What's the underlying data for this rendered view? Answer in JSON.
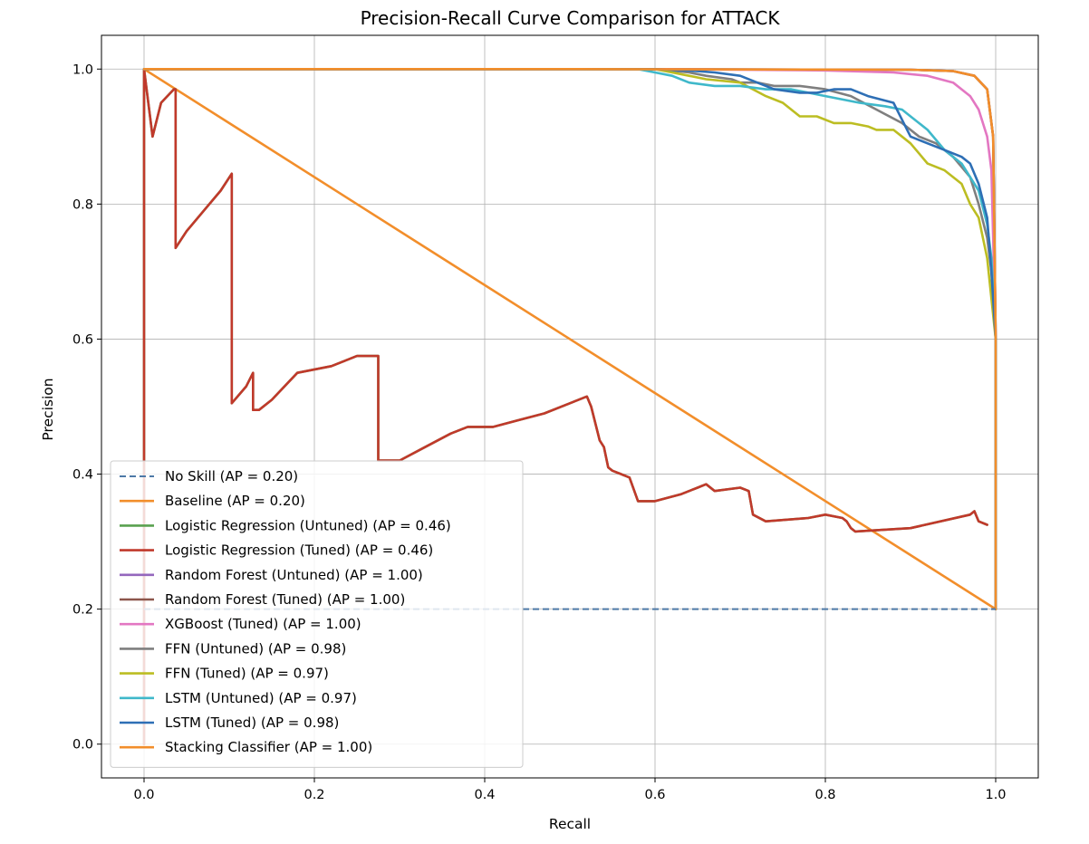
{
  "chart_data": {
    "type": "line",
    "title": "Precision-Recall Curve Comparison for ATTACK",
    "xlabel": "Recall",
    "ylabel": "Precision",
    "xlim": [
      -0.05,
      1.05
    ],
    "ylim": [
      -0.05,
      1.05
    ],
    "xticks": [
      "0.0",
      "0.2",
      "0.4",
      "0.6",
      "0.8",
      "1.0"
    ],
    "yticks": [
      "0.0",
      "0.2",
      "0.4",
      "0.6",
      "0.8",
      "1.0"
    ],
    "grid": true,
    "legend_position": "lower-left",
    "series": [
      {
        "name": "No Skill (AP = 0.20)",
        "color": "#4e79a7",
        "dashed": true,
        "x": [
          0.0,
          1.0
        ],
        "y": [
          0.2,
          0.2
        ]
      },
      {
        "name": "Baseline (AP = 0.20)",
        "color": "#f28e2b",
        "dashed": false,
        "x": [
          0.0,
          1.0
        ],
        "y": [
          1.0,
          0.2
        ]
      },
      {
        "name": "Logistic Regression (Untuned) (AP = 0.46)",
        "color": "#59a14f",
        "dashed": false,
        "x": [
          0.0,
          0.0,
          0.01,
          0.02,
          0.035,
          0.037,
          0.037,
          0.05,
          0.07,
          0.09,
          0.103,
          0.103,
          0.12,
          0.128,
          0.128,
          0.135,
          0.15,
          0.18,
          0.22,
          0.25,
          0.26,
          0.275,
          0.275,
          0.285,
          0.3,
          0.33,
          0.36,
          0.38,
          0.41,
          0.44,
          0.47,
          0.5,
          0.52,
          0.525,
          0.535,
          0.54,
          0.545,
          0.55,
          0.56,
          0.57,
          0.58,
          0.6,
          0.63,
          0.65,
          0.66,
          0.67,
          0.7,
          0.71,
          0.715,
          0.73,
          0.78,
          0.8,
          0.82,
          0.825,
          0.83,
          0.835,
          0.9,
          0.97,
          0.975,
          0.98,
          0.99
        ],
        "y": [
          0.0,
          1.0,
          0.9,
          0.95,
          0.97,
          0.97,
          0.735,
          0.76,
          0.79,
          0.82,
          0.845,
          0.505,
          0.53,
          0.55,
          0.495,
          0.495,
          0.51,
          0.55,
          0.56,
          0.575,
          0.575,
          0.575,
          0.42,
          0.42,
          0.42,
          0.44,
          0.46,
          0.47,
          0.47,
          0.48,
          0.49,
          0.505,
          0.515,
          0.5,
          0.45,
          0.44,
          0.41,
          0.405,
          0.4,
          0.395,
          0.36,
          0.36,
          0.37,
          0.38,
          0.385,
          0.375,
          0.38,
          0.375,
          0.34,
          0.33,
          0.335,
          0.34,
          0.335,
          0.33,
          0.32,
          0.315,
          0.32,
          0.34,
          0.345,
          0.33,
          0.325
        ]
      },
      {
        "name": "Logistic Regression (Tuned) (AP = 0.46)",
        "color": "#c0392b",
        "dashed": false,
        "x": [
          0.0,
          0.0,
          0.01,
          0.02,
          0.035,
          0.037,
          0.037,
          0.05,
          0.07,
          0.09,
          0.103,
          0.103,
          0.12,
          0.128,
          0.128,
          0.135,
          0.15,
          0.18,
          0.22,
          0.25,
          0.26,
          0.275,
          0.275,
          0.285,
          0.3,
          0.33,
          0.36,
          0.38,
          0.41,
          0.44,
          0.47,
          0.5,
          0.52,
          0.525,
          0.535,
          0.54,
          0.545,
          0.55,
          0.56,
          0.57,
          0.58,
          0.6,
          0.63,
          0.65,
          0.66,
          0.67,
          0.7,
          0.71,
          0.715,
          0.73,
          0.78,
          0.8,
          0.82,
          0.825,
          0.83,
          0.835,
          0.9,
          0.97,
          0.975,
          0.98,
          0.99
        ],
        "y": [
          0.0,
          1.0,
          0.9,
          0.95,
          0.97,
          0.97,
          0.735,
          0.76,
          0.79,
          0.82,
          0.845,
          0.505,
          0.53,
          0.55,
          0.495,
          0.495,
          0.51,
          0.55,
          0.56,
          0.575,
          0.575,
          0.575,
          0.42,
          0.42,
          0.42,
          0.44,
          0.46,
          0.47,
          0.47,
          0.48,
          0.49,
          0.505,
          0.515,
          0.5,
          0.45,
          0.44,
          0.41,
          0.405,
          0.4,
          0.395,
          0.36,
          0.36,
          0.37,
          0.38,
          0.385,
          0.375,
          0.38,
          0.375,
          0.34,
          0.33,
          0.335,
          0.34,
          0.335,
          0.33,
          0.32,
          0.315,
          0.32,
          0.34,
          0.345,
          0.33,
          0.325
        ]
      },
      {
        "name": "Random Forest (Untuned) (AP = 1.00)",
        "color": "#9467bd",
        "dashed": false,
        "x": [
          0.0,
          0.5,
          0.9,
          0.95,
          0.975,
          0.99,
          0.997,
          1.0,
          1.0
        ],
        "y": [
          1.0,
          1.0,
          0.999,
          0.997,
          0.99,
          0.97,
          0.9,
          0.6,
          0.2
        ]
      },
      {
        "name": "Random Forest (Tuned) (AP = 1.00)",
        "color": "#8c564b",
        "dashed": false,
        "x": [
          0.0,
          0.5,
          0.9,
          0.95,
          0.975,
          0.99,
          0.997,
          1.0,
          1.0
        ],
        "y": [
          1.0,
          1.0,
          0.999,
          0.997,
          0.99,
          0.97,
          0.9,
          0.6,
          0.2
        ]
      },
      {
        "name": "XGBoost (Tuned) (AP = 1.00)",
        "color": "#e377c2",
        "dashed": false,
        "x": [
          0.0,
          0.6,
          0.8,
          0.88,
          0.92,
          0.95,
          0.97,
          0.98,
          0.99,
          0.995,
          1.0,
          1.0
        ],
        "y": [
          1.0,
          1.0,
          0.998,
          0.995,
          0.99,
          0.98,
          0.96,
          0.94,
          0.9,
          0.85,
          0.6,
          0.2
        ]
      },
      {
        "name": "FFN (Untuned) (AP = 0.98)",
        "color": "#7f7f7f",
        "dashed": false,
        "x": [
          0.0,
          0.6,
          0.64,
          0.66,
          0.69,
          0.7,
          0.72,
          0.74,
          0.77,
          0.8,
          0.83,
          0.86,
          0.89,
          0.91,
          0.93,
          0.95,
          0.97,
          0.98,
          0.99,
          0.995,
          1.0,
          1.0
        ],
        "y": [
          1.0,
          1.0,
          0.995,
          0.99,
          0.985,
          0.98,
          0.98,
          0.975,
          0.975,
          0.97,
          0.96,
          0.94,
          0.92,
          0.9,
          0.89,
          0.87,
          0.84,
          0.8,
          0.75,
          0.7,
          0.6,
          0.2
        ]
      },
      {
        "name": "FFN (Tuned) (AP = 0.97)",
        "color": "#bcbd22",
        "dashed": false,
        "x": [
          0.0,
          0.6,
          0.62,
          0.64,
          0.66,
          0.7,
          0.73,
          0.75,
          0.76,
          0.77,
          0.79,
          0.81,
          0.83,
          0.85,
          0.86,
          0.88,
          0.89,
          0.9,
          0.92,
          0.94,
          0.96,
          0.97,
          0.98,
          0.99,
          1.0,
          1.0
        ],
        "y": [
          1.0,
          1.0,
          0.995,
          0.99,
          0.985,
          0.98,
          0.96,
          0.95,
          0.94,
          0.93,
          0.93,
          0.92,
          0.92,
          0.915,
          0.91,
          0.91,
          0.9,
          0.89,
          0.86,
          0.85,
          0.83,
          0.8,
          0.78,
          0.72,
          0.6,
          0.2
        ]
      },
      {
        "name": "LSTM (Untuned) (AP = 0.97)",
        "color": "#3fb8ca",
        "dashed": false,
        "x": [
          0.0,
          0.58,
          0.6,
          0.62,
          0.64,
          0.67,
          0.7,
          0.73,
          0.76,
          0.8,
          0.84,
          0.87,
          0.89,
          0.9,
          0.92,
          0.94,
          0.96,
          0.98,
          0.99,
          0.995,
          1.0,
          1.0
        ],
        "y": [
          1.0,
          1.0,
          0.995,
          0.99,
          0.98,
          0.975,
          0.975,
          0.97,
          0.97,
          0.96,
          0.95,
          0.945,
          0.94,
          0.93,
          0.91,
          0.88,
          0.86,
          0.82,
          0.77,
          0.72,
          0.6,
          0.2
        ]
      },
      {
        "name": "LSTM (Tuned) (AP = 0.98)",
        "color": "#2e6fb5",
        "dashed": false,
        "x": [
          0.0,
          0.6,
          0.64,
          0.67,
          0.7,
          0.72,
          0.74,
          0.77,
          0.79,
          0.81,
          0.83,
          0.85,
          0.88,
          0.9,
          0.92,
          0.94,
          0.96,
          0.97,
          0.98,
          0.99,
          0.995,
          1.0,
          1.0
        ],
        "y": [
          1.0,
          1.0,
          0.998,
          0.995,
          0.99,
          0.98,
          0.97,
          0.965,
          0.965,
          0.97,
          0.97,
          0.96,
          0.95,
          0.9,
          0.89,
          0.88,
          0.87,
          0.86,
          0.83,
          0.78,
          0.7,
          0.6,
          0.2
        ]
      },
      {
        "name": "Stacking Classifier (AP = 1.00)",
        "color": "#f28e2b",
        "dashed": false,
        "x": [
          0.0,
          0.5,
          0.9,
          0.95,
          0.975,
          0.99,
          0.997,
          1.0,
          1.0
        ],
        "y": [
          1.0,
          1.0,
          0.999,
          0.997,
          0.99,
          0.97,
          0.9,
          0.6,
          0.2
        ]
      }
    ]
  }
}
